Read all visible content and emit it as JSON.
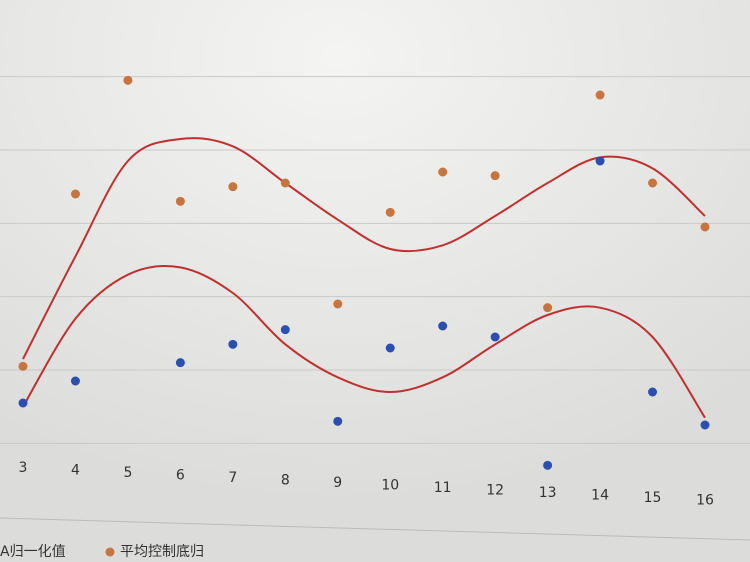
{
  "chart_data": {
    "type": "scatter",
    "categories": [
      "3",
      "4",
      "5",
      "6",
      "7",
      "8",
      "9",
      "10",
      "11",
      "12",
      "13",
      "14",
      "15",
      "16"
    ],
    "ylim": [
      -0.1,
      1.1
    ],
    "yticks": [
      0,
      0.2,
      0.4,
      0.6,
      0.8,
      1
    ],
    "grid": true,
    "series": [
      {
        "name": "A归一化值",
        "color": "#2a4fb0",
        "mark": "point",
        "values": [
          0.11,
          0.17,
          null,
          0.22,
          0.27,
          0.31,
          0.06,
          0.26,
          0.32,
          0.29,
          -0.06,
          0.77,
          0.14,
          0.05
        ]
      },
      {
        "name": "平均控制底归",
        "color": "#c8743e",
        "mark": "point",
        "values": [
          0.21,
          0.68,
          0.99,
          0.66,
          0.7,
          0.71,
          0.38,
          0.63,
          0.74,
          0.73,
          0.37,
          0.95,
          0.71,
          0.59
        ]
      },
      {
        "color": "#c0302e",
        "mark": "line",
        "values": [
          0.23,
          0.51,
          0.77,
          0.83,
          0.81,
          0.71,
          0.61,
          0.53,
          0.54,
          0.62,
          0.71,
          0.78,
          0.75,
          0.62
        ]
      },
      {
        "color": "#c0302e",
        "mark": "line",
        "values": [
          0.1,
          0.34,
          0.46,
          0.48,
          0.41,
          0.27,
          0.18,
          0.14,
          0.18,
          0.27,
          0.35,
          0.37,
          0.29,
          0.07
        ]
      }
    ]
  }
}
